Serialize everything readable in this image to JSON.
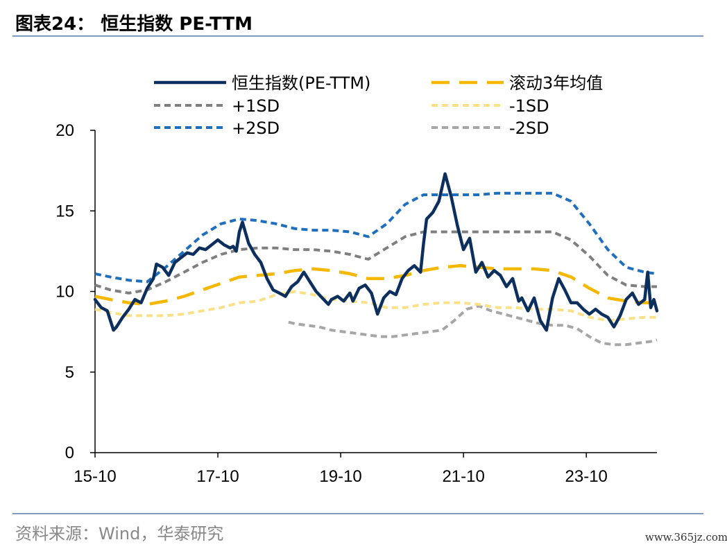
{
  "header": {
    "title": "图表24： 恒生指数 PE-TTM"
  },
  "footer": {
    "source": "资料来源：Wind，华泰研究",
    "watermark": "www.365jz.com"
  },
  "colors": {
    "pe": "#0d2f5e",
    "avg": "#f5b800",
    "plus1": "#7f7f7f",
    "minus1": "#fbe08a",
    "plus2": "#1f6fbd",
    "minus2": "#a6a6a6"
  },
  "chart_data": {
    "type": "line",
    "title": "",
    "xlabel": "",
    "ylabel": "",
    "ylim": [
      0,
      20
    ],
    "yticks": [
      0,
      5,
      10,
      15,
      20
    ],
    "xlim": [
      2015.75,
      2024.9
    ],
    "xticks": [
      {
        "x": 2015.75,
        "label": "15-10"
      },
      {
        "x": 2017.75,
        "label": "17-10"
      },
      {
        "x": 2019.75,
        "label": "19-10"
      },
      {
        "x": 2021.75,
        "label": "21-10"
      },
      {
        "x": 2023.75,
        "label": "23-10"
      }
    ],
    "legend_position": "top",
    "series": [
      {
        "name": "恒生指数(PE-TTM)",
        "style": "solid",
        "color": "#0d2f5e",
        "x": [
          2015.75,
          2015.85,
          2015.95,
          2016.05,
          2016.1,
          2016.2,
          2016.3,
          2016.4,
          2016.5,
          2016.6,
          2016.7,
          2016.75,
          2016.85,
          2016.95,
          2017.05,
          2017.15,
          2017.25,
          2017.35,
          2017.45,
          2017.55,
          2017.65,
          2017.75,
          2017.85,
          2017.95,
          2018.0,
          2018.05,
          2018.1,
          2018.15,
          2018.25,
          2018.35,
          2018.45,
          2018.55,
          2018.65,
          2018.75,
          2018.85,
          2018.95,
          2019.05,
          2019.15,
          2019.25,
          2019.35,
          2019.45,
          2019.55,
          2019.6,
          2019.7,
          2019.8,
          2019.9,
          2019.95,
          2020.05,
          2020.15,
          2020.25,
          2020.35,
          2020.45,
          2020.55,
          2020.65,
          2020.75,
          2020.85,
          2020.95,
          2021.05,
          2021.1,
          2021.15,
          2021.25,
          2021.35,
          2021.45,
          2021.55,
          2021.65,
          2021.75,
          2021.85,
          2021.95,
          2022.05,
          2022.15,
          2022.25,
          2022.35,
          2022.45,
          2022.55,
          2022.65,
          2022.7,
          2022.8,
          2022.9,
          2023.0,
          2023.1,
          2023.2,
          2023.3,
          2023.4,
          2023.5,
          2023.6,
          2023.7,
          2023.8,
          2023.9,
          2024.0,
          2024.1,
          2024.2,
          2024.3,
          2024.4,
          2024.5,
          2024.6,
          2024.7,
          2024.75,
          2024.8,
          2024.85,
          2024.9
        ],
        "y": [
          9.5,
          9.0,
          8.8,
          7.6,
          7.8,
          8.4,
          8.9,
          9.5,
          9.3,
          10.2,
          10.8,
          11.7,
          11.5,
          11.0,
          11.8,
          12.1,
          12.4,
          12.3,
          12.7,
          12.6,
          12.9,
          13.2,
          12.9,
          12.7,
          12.8,
          12.5,
          13.7,
          14.3,
          13.0,
          12.3,
          11.8,
          10.8,
          10.1,
          9.9,
          9.7,
          10.3,
          10.6,
          11.2,
          10.6,
          10.0,
          9.6,
          9.2,
          9.5,
          9.7,
          9.4,
          9.9,
          9.4,
          10.2,
          10.4,
          9.9,
          8.6,
          9.6,
          10.0,
          9.8,
          10.8,
          11.3,
          11.6,
          11.2,
          13.0,
          14.5,
          14.9,
          15.6,
          17.3,
          15.9,
          14.1,
          12.6,
          13.3,
          11.2,
          11.8,
          10.9,
          11.3,
          11.0,
          10.3,
          10.8,
          9.4,
          9.6,
          8.8,
          9.6,
          8.2,
          7.6,
          9.6,
          10.8,
          10.1,
          9.3,
          9.3,
          8.9,
          8.6,
          8.9,
          8.6,
          8.4,
          7.8,
          8.5,
          9.5,
          9.9,
          9.2,
          9.5,
          11.2,
          9.0,
          9.5,
          8.8
        ]
      },
      {
        "name": "滚动3年均值",
        "style": "long-dash",
        "color": "#f5b800",
        "x": [
          2015.75,
          2016.0,
          2016.3,
          2016.6,
          2016.9,
          2017.2,
          2017.5,
          2017.8,
          2018.1,
          2018.4,
          2018.7,
          2019.0,
          2019.3,
          2019.6,
          2019.9,
          2020.2,
          2020.5,
          2020.8,
          2021.1,
          2021.4,
          2021.7,
          2022.0,
          2022.3,
          2022.6,
          2022.9,
          2023.2,
          2023.5,
          2023.8,
          2024.1,
          2024.4,
          2024.7,
          2024.9
        ],
        "y": [
          9.7,
          9.5,
          9.3,
          9.2,
          9.4,
          9.7,
          10.1,
          10.5,
          10.9,
          11.0,
          11.1,
          11.3,
          11.4,
          11.3,
          11.1,
          10.8,
          10.8,
          11.0,
          11.3,
          11.5,
          11.6,
          11.5,
          11.4,
          11.4,
          11.4,
          11.3,
          10.9,
          10.2,
          9.6,
          9.4,
          9.3,
          9.3
        ]
      },
      {
        "name": "+1SD",
        "style": "dash",
        "color": "#7f7f7f",
        "x": [
          2015.75,
          2016.0,
          2016.3,
          2016.6,
          2016.9,
          2017.2,
          2017.5,
          2017.8,
          2018.1,
          2018.4,
          2018.7,
          2019.0,
          2019.3,
          2019.6,
          2019.9,
          2020.2,
          2020.5,
          2020.8,
          2021.1,
          2021.4,
          2021.7,
          2022.0,
          2022.3,
          2022.6,
          2022.9,
          2023.2,
          2023.5,
          2023.8,
          2024.1,
          2024.4,
          2024.7,
          2024.9
        ],
        "y": [
          10.4,
          10.1,
          9.9,
          10.1,
          10.6,
          11.2,
          11.8,
          12.3,
          12.6,
          12.7,
          12.7,
          12.6,
          12.6,
          12.5,
          12.3,
          12.0,
          12.7,
          13.4,
          13.7,
          13.7,
          13.7,
          13.7,
          13.7,
          13.7,
          13.7,
          13.7,
          13.2,
          12.2,
          11.0,
          10.4,
          10.3,
          10.3
        ]
      },
      {
        "name": "-1SD",
        "style": "dash",
        "color": "#fbe08a",
        "x": [
          2015.75,
          2016.0,
          2016.3,
          2016.6,
          2016.9,
          2017.2,
          2017.5,
          2017.8,
          2018.1,
          2018.4,
          2018.7,
          2019.0,
          2019.3,
          2019.6,
          2019.9,
          2020.2,
          2020.5,
          2020.8,
          2021.1,
          2021.4,
          2021.7,
          2022.0,
          2022.3,
          2022.6,
          2022.9,
          2023.2,
          2023.5,
          2023.8,
          2024.1,
          2024.4,
          2024.7,
          2024.9
        ],
        "y": [
          8.9,
          8.7,
          8.5,
          8.5,
          8.5,
          8.6,
          8.8,
          9.0,
          9.3,
          9.4,
          9.8,
          10.0,
          9.8,
          9.5,
          9.4,
          9.3,
          9.0,
          9.0,
          9.2,
          9.3,
          9.3,
          9.2,
          9.0,
          9.0,
          8.9,
          8.9,
          8.8,
          8.4,
          8.2,
          8.3,
          8.4,
          8.4
        ]
      },
      {
        "name": "+2SD",
        "style": "dash",
        "color": "#1f6fbd",
        "x": [
          2015.75,
          2016.0,
          2016.3,
          2016.6,
          2016.9,
          2017.2,
          2017.5,
          2017.8,
          2018.1,
          2018.4,
          2018.7,
          2019.0,
          2019.3,
          2019.6,
          2019.9,
          2020.2,
          2020.5,
          2020.8,
          2021.1,
          2021.4,
          2021.7,
          2022.0,
          2022.3,
          2022.6,
          2022.9,
          2023.2,
          2023.5,
          2023.8,
          2024.1,
          2024.4,
          2024.7,
          2024.9
        ],
        "y": [
          11.1,
          10.9,
          10.7,
          10.6,
          11.5,
          12.5,
          13.5,
          14.2,
          14.5,
          14.4,
          14.2,
          13.9,
          13.8,
          13.8,
          13.7,
          13.4,
          14.2,
          15.4,
          16.0,
          16.0,
          16.0,
          16.0,
          16.1,
          16.1,
          16.1,
          16.1,
          15.6,
          14.2,
          12.6,
          11.5,
          11.2,
          11.1
        ]
      },
      {
        "name": "-2SD",
        "style": "dash",
        "color": "#a6a6a6",
        "x": [
          2018.9,
          2019.0,
          2019.2,
          2019.4,
          2019.6,
          2019.8,
          2020.0,
          2020.2,
          2020.4,
          2020.6,
          2020.8,
          2021.0,
          2021.2,
          2021.4,
          2021.6,
          2021.8,
          2022.0,
          2022.2,
          2022.4,
          2022.6,
          2022.8,
          2023.0,
          2023.2,
          2023.4,
          2023.6,
          2023.8,
          2024.0,
          2024.2,
          2024.4,
          2024.6,
          2024.8,
          2024.9
        ],
        "y": [
          8.1,
          8.0,
          7.9,
          7.8,
          7.6,
          7.5,
          7.4,
          7.3,
          7.2,
          7.2,
          7.3,
          7.4,
          7.5,
          7.6,
          8.2,
          8.9,
          9.1,
          8.8,
          8.6,
          8.4,
          8.2,
          8.0,
          7.9,
          7.9,
          7.7,
          7.2,
          6.8,
          6.7,
          6.7,
          6.8,
          6.9,
          7.0
        ]
      }
    ]
  }
}
